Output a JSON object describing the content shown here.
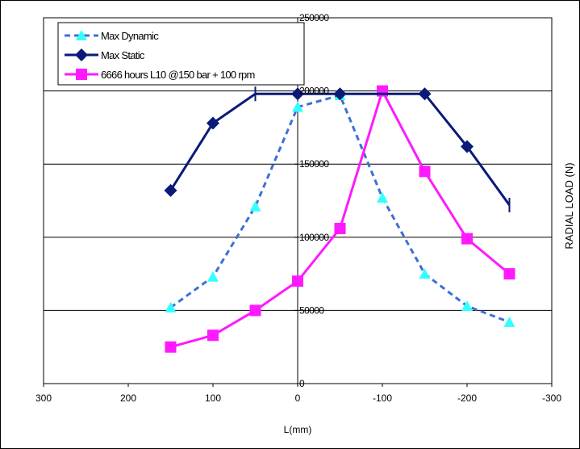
{
  "chart_data": {
    "type": "line",
    "xlabel": "L(mm)",
    "ylabel": "RADIAL LOAD (N)",
    "xlim": [
      300,
      -300
    ],
    "ylim": [
      0,
      250000
    ],
    "x_ticks": [
      300,
      200,
      100,
      0,
      -100,
      -200,
      -300
    ],
    "x_tick_labels": [
      "300",
      "200",
      "100",
      "0",
      "-100",
      "-200",
      "-300"
    ],
    "y_ticks": [
      0,
      50000,
      100000,
      150000,
      200000,
      250000
    ],
    "y_tick_labels": [
      "0",
      "50000",
      "100000",
      "150000",
      "200000",
      "250000"
    ],
    "grid": "horizontal",
    "legend_position": "top-left",
    "series": [
      {
        "name": "Max Dynamic",
        "color": "#3c6fd6",
        "marker_color": "#33ffff",
        "line_style": "dashed",
        "marker": "triangle",
        "x": [
          150,
          100,
          50,
          0,
          -50,
          -100,
          -150,
          -200,
          -250
        ],
        "y": [
          52000,
          73000,
          121000,
          189000,
          197000,
          127000,
          75000,
          53000,
          42000
        ]
      },
      {
        "name": "Max Static",
        "color": "#0a1a78",
        "marker_color": "#0a1a78",
        "line_style": "solid",
        "marker": "diamond",
        "x": [
          150,
          100,
          50,
          0,
          -50,
          -100,
          -150,
          -200,
          -250
        ],
        "y": [
          132000,
          178000,
          198000,
          198000,
          198000,
          198000,
          198000,
          162000,
          122000
        ],
        "markers_at": [
          150,
          100,
          0,
          -50,
          -150,
          -200
        ],
        "tick_markers_at": [
          50,
          -250
        ]
      },
      {
        "name": "6666 hours L10 @150 bar + 100 rpm",
        "color": "#ff19ff",
        "marker_color": "#ff19ff",
        "line_style": "solid",
        "marker": "square",
        "x": [
          150,
          100,
          50,
          0,
          -50,
          -100,
          -150,
          -200,
          -250
        ],
        "y": [
          25000,
          33000,
          50000,
          70000,
          106000,
          200000,
          145000,
          99000,
          75000
        ]
      }
    ]
  }
}
